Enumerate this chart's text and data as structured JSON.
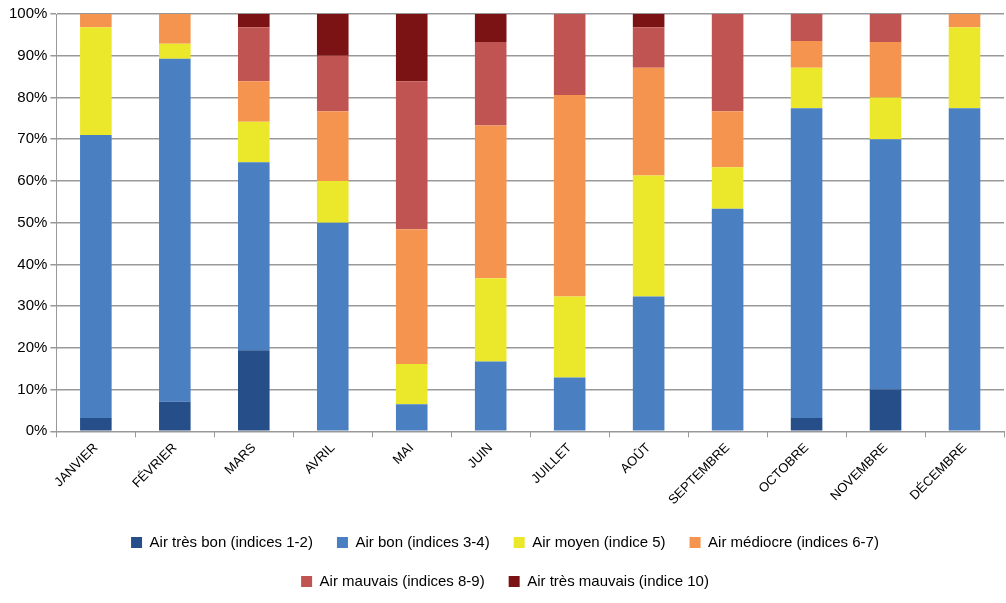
{
  "chart_data": {
    "type": "bar",
    "stacked": true,
    "categories": [
      "JANVIER",
      "FÉVRIER",
      "MARS",
      "AVRIL",
      "MAI",
      "JUIN",
      "JUILLET",
      "AOÛT",
      "SEPTEMBRE",
      "OCTOBRE",
      "NOVEMBRE",
      "DÉCEMBRE"
    ],
    "series": [
      {
        "name": "Air très bon (indices 1-2)",
        "color": "#264f8a",
        "values": [
          3.2,
          7.1,
          19.4,
          0,
          0,
          0,
          0,
          0,
          0,
          3.2,
          10,
          0
        ]
      },
      {
        "name": "Air bon (indices 3-4)",
        "color": "#4a7fc1",
        "values": [
          67.8,
          82.2,
          45.1,
          50,
          6.5,
          16.7,
          12.9,
          32.3,
          53.3,
          74.2,
          60,
          77.4
        ]
      },
      {
        "name": "Air moyen (indice 5)",
        "color": "#ebe72a",
        "values": [
          25.8,
          3.6,
          9.7,
          10,
          9.6,
          20,
          19.4,
          29,
          10,
          9.7,
          10,
          19.4
        ]
      },
      {
        "name": "Air médiocre (indices 6-7)",
        "color": "#f5944f",
        "values": [
          3.2,
          7.1,
          9.7,
          16.7,
          32.3,
          36.6,
          48.3,
          25.8,
          13.4,
          6.4,
          13.3,
          3.2
        ]
      },
      {
        "name": "Air mauvais (indices 8-9)",
        "color": "#bf5452",
        "values": [
          0,
          0,
          12.9,
          13.3,
          35.5,
          20,
          19.4,
          9.7,
          23.3,
          6.5,
          6.7,
          0
        ]
      },
      {
        "name": "Air très mauvais (indice 10)",
        "color": "#7b1214",
        "values": [
          0,
          0,
          3.2,
          10,
          16.1,
          6.7,
          0,
          3.2,
          0,
          0,
          0,
          0
        ]
      }
    ],
    "ylim": [
      0,
      100
    ],
    "yticks": [
      {
        "value": 0,
        "label": "0%"
      },
      {
        "value": 10,
        "label": "10%"
      },
      {
        "value": 20,
        "label": "20%"
      },
      {
        "value": 30,
        "label": "30%"
      },
      {
        "value": 40,
        "label": "40%"
      },
      {
        "value": 50,
        "label": "50%"
      },
      {
        "value": 60,
        "label": "60%"
      },
      {
        "value": 70,
        "label": "70%"
      },
      {
        "value": 80,
        "label": "80%"
      },
      {
        "value": 90,
        "label": "90%"
      },
      {
        "value": 100,
        "label": "100%"
      }
    ],
    "grid": "y",
    "legend": "bottom"
  }
}
